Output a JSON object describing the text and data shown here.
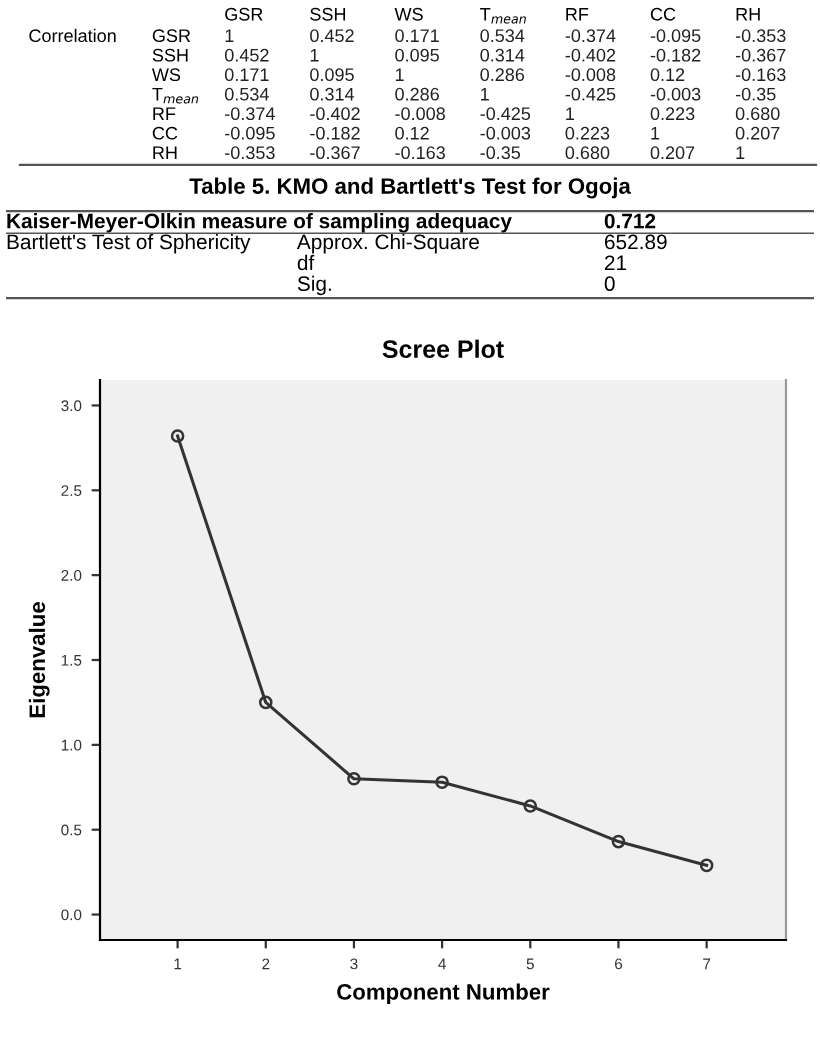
{
  "chart_data": [
    {
      "type": "other",
      "ylabel": "Correlation",
      "categories": [
        "GSR",
        "SSH",
        "WS",
        "T$_{mean}$",
        "RF",
        "CC",
        "RH"
      ],
      "y_categories": [
        "GSR",
        "SSH",
        "WS",
        "T$_{mean}$",
        "RF",
        "CC",
        "RH"
      ],
      "annotations": [
        "1",
        "0.452",
        "0.171",
        "0.534",
        "-0.374",
        "-0.095",
        "-0.353",
        "0.452",
        "1",
        "0.095",
        "0.314",
        "-0.402",
        "-0.182",
        "-0.367",
        "0.171",
        "0.095",
        "1",
        "0.286",
        "-0.008",
        "0.12",
        "-0.163",
        "0.534",
        "0.314",
        "0.286",
        "1",
        "-0.425",
        "-0.003",
        "-0.35",
        "-0.374",
        "-0.402",
        "-0.008",
        "-0.425",
        "1",
        "0.223",
        "0.680",
        "-0.095",
        "-0.182",
        "0.12",
        "-0.003",
        "0.223",
        "1",
        "0.207",
        "-0.353",
        "-0.367",
        "-0.163",
        "-0.35",
        "0.680",
        "0.207",
        "1"
      ]
    },
    {
      "type": "other",
      "title": "Table 5. KMO and Bartlett's Test for Ogoja",
      "annotations": [
        "Kaiser-Meyer-Olkin measure of sampling adequacy",
        "0.712",
        "Bartlett's Test of Sphericity",
        "Approx. Chi-Square",
        "652.89",
        "df",
        "21",
        "Sig.",
        "0"
      ]
    },
    {
      "type": "line",
      "title": "Scree Plot",
      "xlabel": "Component Number",
      "ylabel": "Eigenvalue",
      "x": [
        1,
        2,
        3,
        4,
        5,
        6,
        7
      ],
      "series": [
        {
          "color": "#333333",
          "values": [
            2.82,
            1.25,
            0.8,
            0.78,
            0.64,
            0.43,
            0.29
          ]
        }
      ],
      "marker": "circle",
      "line_style": "solid",
      "grid": false,
      "xlim": [
        0.12,
        7.9
      ],
      "xticks": [
        1,
        2,
        3,
        4,
        5,
        6,
        7
      ],
      "ylim": [
        -0.15,
        3.15
      ],
      "yticks": [
        {
          "value": 0,
          "label": "0.0"
        },
        {
          "value": 0.5,
          "label": "0.5"
        },
        {
          "value": 1,
          "label": "1.0"
        },
        {
          "value": 1.5,
          "label": "1.5"
        },
        {
          "value": 2,
          "label": "2.0"
        },
        {
          "value": 2.5,
          "label": "2.5"
        },
        {
          "value": 3,
          "label": "3.0"
        }
      ]
    }
  ]
}
